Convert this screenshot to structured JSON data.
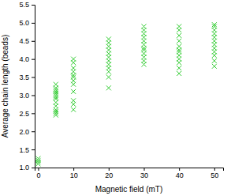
{
  "chart_data": {
    "type": "scatter",
    "x_label": "Magnetic field (mT)",
    "y_label": "Average chain length (beads)",
    "color": "#33cc33",
    "marker": "x",
    "x": [
      0,
      0,
      0,
      0,
      5,
      5,
      5,
      5,
      5,
      5,
      5,
      5,
      5,
      5,
      5,
      5,
      5,
      5,
      10,
      10,
      10,
      10,
      10,
      10,
      10,
      10,
      10,
      10,
      10,
      10,
      20,
      20,
      20,
      20,
      20,
      20,
      20,
      20,
      20,
      20,
      20,
      20,
      30,
      30,
      30,
      30,
      30,
      30,
      30,
      30,
      30,
      30,
      30,
      30,
      40,
      40,
      40,
      40,
      40,
      40,
      40,
      40,
      40,
      40,
      40,
      40,
      50,
      50,
      50,
      50,
      50,
      50,
      50,
      50,
      50,
      50,
      50,
      50
    ],
    "values": [
      1.1,
      1.15,
      1.2,
      1.25,
      2.45,
      2.5,
      2.55,
      2.6,
      2.7,
      2.8,
      2.9,
      2.95,
      3.0,
      3.05,
      3.1,
      3.15,
      3.2,
      3.3,
      2.6,
      2.75,
      2.85,
      3.1,
      3.3,
      3.4,
      3.5,
      3.55,
      3.65,
      3.75,
      3.9,
      4.0,
      3.2,
      3.5,
      3.65,
      3.75,
      3.85,
      3.95,
      4.05,
      4.15,
      4.25,
      4.35,
      4.45,
      4.55,
      3.85,
      3.95,
      4.05,
      4.15,
      4.25,
      4.3,
      4.4,
      4.5,
      4.6,
      4.7,
      4.8,
      4.9,
      3.6,
      3.75,
      3.9,
      4.0,
      4.1,
      4.2,
      4.25,
      4.35,
      4.5,
      4.65,
      4.8,
      4.9,
      3.8,
      3.95,
      4.1,
      4.2,
      4.3,
      4.4,
      4.5,
      4.6,
      4.7,
      4.8,
      4.9,
      4.95
    ],
    "xlim": [
      -1,
      52.5
    ],
    "xticks": [
      0,
      10,
      20,
      30,
      40,
      50
    ],
    "ylim": [
      1.0,
      5.5
    ],
    "yticks": [
      {
        "value": 1,
        "label": "1.0"
      },
      1.5,
      {
        "value": 2,
        "label": "2.0"
      },
      2.5,
      {
        "value": 3,
        "label": "3.0"
      },
      3.5,
      {
        "value": 4,
        "label": "4.0"
      },
      4.5,
      {
        "value": 5,
        "label": "5.0"
      },
      5.5
    ]
  }
}
